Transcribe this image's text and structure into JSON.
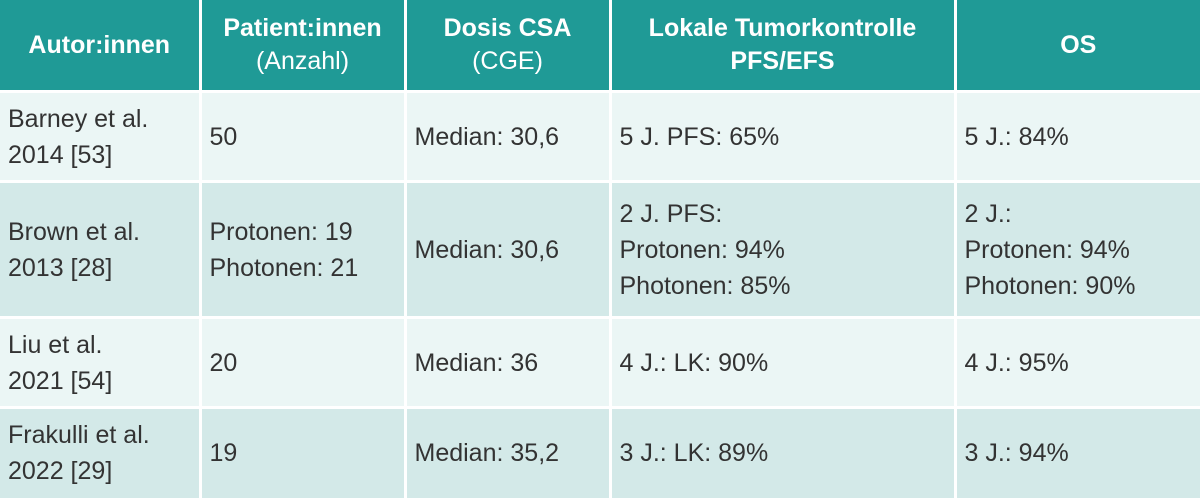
{
  "header": {
    "col1": {
      "title": "Autor:innen",
      "sub": ""
    },
    "col2": {
      "title": "Patient:innen",
      "sub": "(Anzahl)"
    },
    "col3": {
      "title": "Dosis CSA",
      "sub": "(CGE)"
    },
    "col4": {
      "title": "Lokale Tumorkontrolle",
      "sub": "PFS/EFS"
    },
    "col5": {
      "title": "OS",
      "sub": ""
    }
  },
  "rows": [
    {
      "author": "Barney et al.\n2014 [53]",
      "patients": "50",
      "dose": "Median: 30,6",
      "control": "5 J. PFS: 65%",
      "os": "5 J.: 84%"
    },
    {
      "author": "Brown et al.\n2013 [28]",
      "patients": "Protonen: 19\nPhotonen: 21",
      "dose": "Median: 30,6",
      "control": "2 J. PFS:\nProtonen: 94%\nPhotonen: 85%",
      "os": "2 J.:\nProtonen: 94%\nPhotonen: 90%"
    },
    {
      "author": "Liu et al.\n2021 [54]",
      "patients": "20",
      "dose": "Median: 36",
      "control": "4 J.: LK: 90%",
      "os": "4 J.: 95%"
    },
    {
      "author": "Frakulli et al.\n2022 [29]",
      "patients": "19",
      "dose": "Median: 35,2",
      "control": "3 J.: LK: 89%",
      "os": "3 J.: 94%"
    }
  ]
}
